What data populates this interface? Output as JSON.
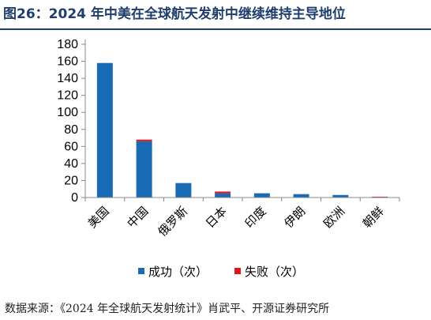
{
  "title": "图26：2024 年中美在全球航天发射中继续维持主导地位",
  "source": "数据来源：《2024 年全球航天发射统计》肖武平、开源证券研究所",
  "colors": {
    "title": "#1f3e6b",
    "success": "#1a6bb5",
    "failure": "#e0161b",
    "axis": "#888888"
  },
  "chart_data": {
    "type": "bar",
    "stacked": true,
    "categories": [
      "美国",
      "中国",
      "俄罗斯",
      "日本",
      "印度",
      "伊朗",
      "欧洲",
      "朝鲜"
    ],
    "series": [
      {
        "name": "成功（次）",
        "values": [
          158,
          66,
          17,
          5,
          5,
          4,
          3,
          0
        ]
      },
      {
        "name": "失败（次）",
        "values": [
          0,
          2,
          0,
          2,
          0,
          0,
          0,
          1
        ]
      }
    ],
    "ylim": [
      0,
      180
    ],
    "yticks": [
      0,
      20,
      40,
      60,
      80,
      100,
      120,
      140,
      160,
      180
    ],
    "title": "",
    "xlabel": "",
    "ylabel": "",
    "legend_position": "bottom",
    "grid": false
  }
}
